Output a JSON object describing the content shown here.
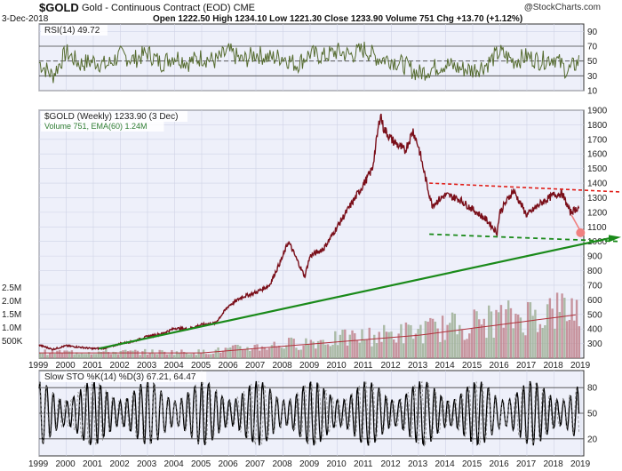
{
  "header": {
    "symbol": "$GOLD",
    "description": "Gold - Continuous Contract (EOD) CME",
    "date": "3-Dec-2018",
    "quote": "Open 1222.50  High 1234.10  Low 1221.30  Close 1233.90  Volume 751  Chg +13.70 (+1.12%)",
    "logo_symbol": "@",
    "logo_text": "StockCharts.com"
  },
  "chart_data": [
    {
      "type": "line",
      "panel": "indicator-top",
      "legend": "RSI(14) 49.72",
      "ylim": [
        10,
        100
      ],
      "y_ticks": [
        90,
        70,
        50,
        30,
        10
      ],
      "reference_lines": [
        70,
        50,
        30
      ],
      "x": [
        1999,
        1999.5,
        2000,
        2000.5,
        2001,
        2001.5,
        2002,
        2002.5,
        2003,
        2003.5,
        2004,
        2004.5,
        2005,
        2005.5,
        2006,
        2006.5,
        2007,
        2007.5,
        2008,
        2008.5,
        2009,
        2009.5,
        2010,
        2010.5,
        2011,
        2011.5,
        2012,
        2012.5,
        2013,
        2013.5,
        2014,
        2014.5,
        2015,
        2015.5,
        2016,
        2016.5,
        2017,
        2017.5,
        2018,
        2018.5,
        2018.92
      ],
      "values": [
        48,
        30,
        62,
        46,
        50,
        44,
        58,
        52,
        61,
        47,
        57,
        48,
        55,
        50,
        63,
        50,
        60,
        54,
        56,
        45,
        60,
        56,
        63,
        58,
        66,
        54,
        52,
        44,
        33,
        40,
        46,
        40,
        38,
        45,
        62,
        50,
        56,
        50,
        55,
        36,
        50
      ]
    },
    {
      "type": "line",
      "panel": "price",
      "legend": "$GOLD (Weekly) 1233.90 (3 Dec)",
      "legend_2": "Volume 751, EMA(60) 1.24M",
      "ylim": [
        200,
        1900
      ],
      "y_ticks": [
        1900,
        1800,
        1700,
        1600,
        1500,
        1400,
        1300,
        1200,
        1100,
        1000,
        900,
        800,
        700,
        600,
        500,
        400,
        300
      ],
      "volume_ticks": [
        "2.5M",
        "2.0M",
        "1.5M",
        "1.0M",
        "500K"
      ],
      "x": [
        1999,
        1999.5,
        2000,
        2000.5,
        2001,
        2001.5,
        2002,
        2002.5,
        2003,
        2003.5,
        2004,
        2004.5,
        2005,
        2005.5,
        2006,
        2006.5,
        2007,
        2007.5,
        2008,
        2008.2,
        2008.8,
        2009,
        2009.5,
        2010,
        2010.5,
        2011,
        2011.3,
        2011.6,
        2011.7,
        2012,
        2012.5,
        2012.8,
        2013,
        2013.3,
        2013.5,
        2014,
        2014.5,
        2015,
        2015.5,
        2015.9,
        2016,
        2016.5,
        2017,
        2017.5,
        2018,
        2018.3,
        2018.6,
        2018.92
      ],
      "values": [
        290,
        260,
        285,
        275,
        265,
        270,
        300,
        315,
        350,
        365,
        405,
        400,
        430,
        440,
        560,
        620,
        650,
        700,
        900,
        1000,
        760,
        900,
        950,
        1100,
        1250,
        1400,
        1500,
        1880,
        1780,
        1700,
        1620,
        1760,
        1650,
        1400,
        1250,
        1320,
        1290,
        1220,
        1150,
        1060,
        1200,
        1350,
        1180,
        1260,
        1320,
        1330,
        1200,
        1234
      ],
      "annotations": [
        "resistance-trendline",
        "support-trendline",
        "long-term-uptrend"
      ]
    },
    {
      "type": "line",
      "panel": "indicator-bottom",
      "legend": "Slow STO %K(14) %D(3) 67.21, 64.47",
      "ylim": [
        0,
        100
      ],
      "y_ticks": [
        80,
        50,
        20
      ],
      "reference_lines": [
        80,
        50,
        20
      ],
      "series": [
        {
          "name": "%K",
          "current": 67.21
        },
        {
          "name": "%D",
          "current": 64.47
        }
      ]
    }
  ],
  "x_axis_labels": [
    "1999",
    "2000",
    "2001",
    "2002",
    "2003",
    "2004",
    "2005",
    "2006",
    "2007",
    "2008",
    "2009",
    "2010",
    "2011",
    "2012",
    "2013",
    "2014",
    "2015",
    "2016",
    "2017",
    "2018",
    "2019"
  ]
}
